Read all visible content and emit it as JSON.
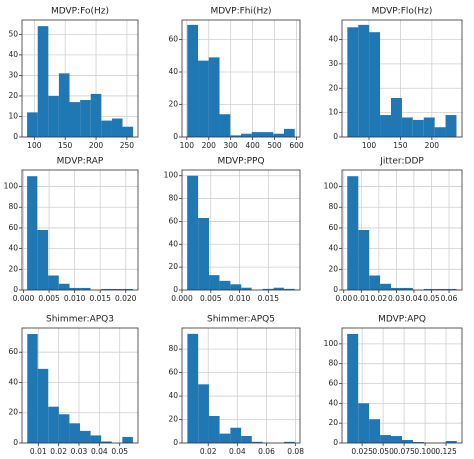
{
  "chart_data": [
    {
      "type": "histogram",
      "title": "MDVP:Fo(Hz)",
      "color": "#1f77b4",
      "grid": true,
      "bins": [
        88.3,
        105.5,
        122.7,
        139.8,
        157.0,
        174.2,
        191.4,
        208.6,
        225.8,
        242.9,
        260.1
      ],
      "values": [
        12,
        54,
        20,
        31,
        17,
        18,
        21,
        8,
        9,
        5
      ],
      "xlim": [
        80,
        268
      ],
      "xticks": [
        100,
        150,
        200,
        250
      ],
      "ylim": [
        0,
        57
      ],
      "yticks": [
        0,
        10,
        20,
        30,
        40,
        50
      ]
    },
    {
      "type": "histogram",
      "title": "MDVP:Fhi(Hz)",
      "color": "#1f77b4",
      "grid": true,
      "bins": [
        102.1,
        151.1,
        200.1,
        249.1,
        298.1,
        347.1,
        396.0,
        445.0,
        494.0,
        543.0,
        592.0
      ],
      "values": [
        69,
        47,
        49,
        14,
        1,
        2,
        3,
        3,
        2,
        5
      ],
      "xlim": [
        78,
        616
      ],
      "xticks": [
        100,
        200,
        300,
        400,
        500,
        600
      ],
      "ylim": [
        0,
        72
      ],
      "yticks": [
        0,
        20,
        40,
        60
      ]
    },
    {
      "type": "histogram",
      "title": "MDVP:Flo(Hz)",
      "color": "#1f77b4",
      "grid": true,
      "bins": [
        65.5,
        82.9,
        100.2,
        117.6,
        135.0,
        152.4,
        169.7,
        187.1,
        204.5,
        221.8,
        239.2
      ],
      "values": [
        45,
        46,
        43,
        9,
        16,
        8,
        7,
        8,
        4,
        9
      ],
      "xlim": [
        57,
        248
      ],
      "xticks": [
        100,
        150,
        200
      ],
      "ylim": [
        0,
        48
      ],
      "yticks": [
        0,
        10,
        20,
        30,
        40
      ]
    },
    {
      "type": "histogram",
      "title": "MDVP:RAP",
      "color": "#1f77b4",
      "grid": true,
      "bins": [
        0.0007,
        0.0027,
        0.0048,
        0.0069,
        0.009,
        0.0111,
        0.0131,
        0.0152,
        0.0173,
        0.0194,
        0.0214
      ],
      "values": [
        110,
        58,
        14,
        6,
        2,
        2,
        0,
        1,
        1,
        1
      ],
      "xlim": [
        -0.0003,
        0.0224
      ],
      "xticks": [
        {
          "value": 0,
          "label": "0.000"
        },
        {
          "value": 0.005,
          "label": "0.005"
        },
        {
          "value": 0.01,
          "label": "0.010"
        },
        {
          "value": 0.015,
          "label": "0.015"
        },
        {
          "value": 0.02,
          "label": "0.020"
        }
      ],
      "ylim": [
        0,
        116
      ],
      "yticks": [
        0,
        20,
        40,
        60,
        80,
        100
      ]
    },
    {
      "type": "histogram",
      "title": "MDVP:PPQ",
      "color": "#1f77b4",
      "grid": true,
      "bins": [
        0.0009,
        0.0028,
        0.0047,
        0.0065,
        0.0084,
        0.0103,
        0.0121,
        0.014,
        0.0159,
        0.0177,
        0.0196
      ],
      "values": [
        100,
        63,
        13,
        8,
        5,
        2,
        0,
        1,
        2,
        1
      ],
      "xlim": [
        0,
        0.0205
      ],
      "xticks": [
        {
          "value": 0,
          "label": "0.000"
        },
        {
          "value": 0.005,
          "label": "0.005"
        },
        {
          "value": 0.01,
          "label": "0.010"
        },
        {
          "value": 0.015,
          "label": "0.015"
        }
      ],
      "ylim": [
        0,
        105
      ],
      "yticks": [
        0,
        20,
        40,
        60,
        80,
        100
      ]
    },
    {
      "type": "histogram",
      "title": "Jitter:DDP",
      "color": "#1f77b4",
      "grid": true,
      "bins": [
        0.002,
        0.0083,
        0.0145,
        0.0207,
        0.0269,
        0.0332,
        0.0394,
        0.0456,
        0.0519,
        0.0581,
        0.0643
      ],
      "values": [
        110,
        58,
        14,
        6,
        2,
        2,
        0,
        1,
        1,
        1
      ],
      "xlim": [
        -0.001,
        0.0674
      ],
      "xticks": [
        {
          "value": 0,
          "label": "0.00"
        },
        0.01,
        0.02,
        0.03,
        0.04,
        0.05,
        0.06
      ],
      "ylim": [
        0,
        116
      ],
      "yticks": [
        0,
        20,
        40,
        60,
        80,
        100
      ]
    },
    {
      "type": "histogram",
      "title": "Shimmer:APQ3",
      "color": "#1f77b4",
      "grid": true,
      "bins": [
        0.0046,
        0.0097,
        0.0149,
        0.0201,
        0.0253,
        0.0305,
        0.0357,
        0.0409,
        0.0461,
        0.0513,
        0.0565
      ],
      "values": [
        72,
        49,
        24,
        19,
        13,
        8,
        5,
        1,
        0,
        4
      ],
      "xlim": [
        0.002,
        0.059
      ],
      "xticks": [
        0.01,
        0.02,
        0.03,
        0.04,
        0.05
      ],
      "ylim": [
        0,
        76
      ],
      "yticks": [
        0,
        20,
        40,
        60
      ]
    },
    {
      "type": "histogram",
      "title": "Shimmer:APQ5",
      "color": "#1f77b4",
      "grid": true,
      "bins": [
        0.0057,
        0.0131,
        0.0205,
        0.0278,
        0.0352,
        0.0426,
        0.0499,
        0.0573,
        0.0647,
        0.072,
        0.0794
      ],
      "values": [
        93,
        50,
        23,
        8,
        13,
        6,
        1,
        0,
        0,
        1
      ],
      "xlim": [
        0.002,
        0.083
      ],
      "xticks": [
        0.02,
        0.04,
        0.06,
        0.08
      ],
      "ylim": [
        0,
        98
      ],
      "yticks": [
        0,
        20,
        40,
        60,
        80
      ]
    },
    {
      "type": "histogram",
      "title": "MDVP:APQ",
      "color": "#1f77b4",
      "grid": true,
      "bins": [
        0.0072,
        0.0203,
        0.0333,
        0.0464,
        0.0594,
        0.0725,
        0.0856,
        0.0986,
        0.1117,
        0.1247,
        0.1378
      ],
      "values": [
        110,
        40,
        24,
        8,
        7,
        3,
        1,
        0,
        0,
        2
      ],
      "xlim": [
        0.001,
        0.144
      ],
      "xticks": [
        0.025,
        {
          "value": 0.05,
          "label": "0.050"
        },
        0.075,
        {
          "value": 0.1,
          "label": "0.100"
        },
        0.125
      ],
      "ylim": [
        0,
        116
      ],
      "yticks": [
        0,
        20,
        40,
        60,
        80,
        100
      ]
    }
  ]
}
